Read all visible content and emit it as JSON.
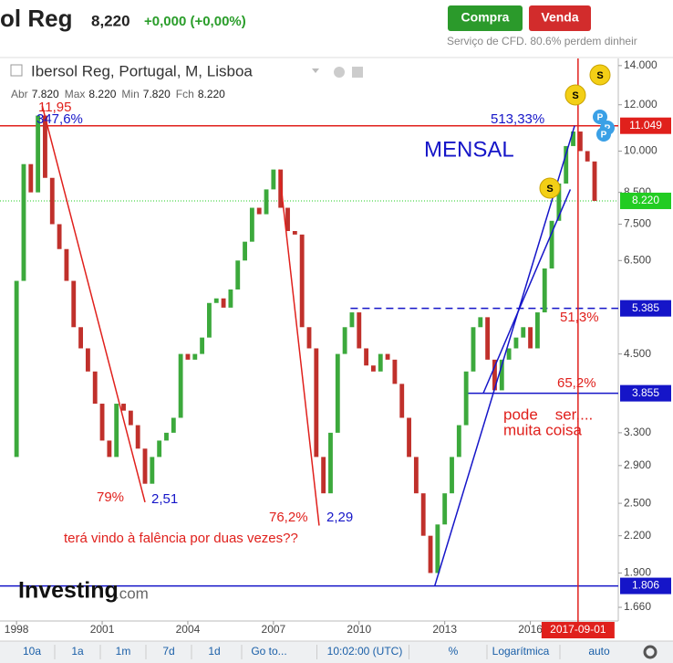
{
  "header": {
    "name": "ol Reg",
    "price": "8,220",
    "change": "+0,000 (+0,00%)",
    "buy": "Compra",
    "sell": "Venda",
    "disclaimer": "Serviço de CFD. 80.6% perdem dinheir"
  },
  "legend": {
    "title": "Ibersol Reg, Portugal, M, Lisboa",
    "ohlc": [
      {
        "label": "Abr",
        "value": "7.820"
      },
      {
        "label": "Max",
        "value": "8.220"
      },
      {
        "label": "Min",
        "value": "7.820"
      },
      {
        "label": "Fch",
        "value": "8.220"
      }
    ]
  },
  "logo": {
    "brand": "Investing",
    "suffix": ".com"
  },
  "toolbar": {
    "items": [
      "10a",
      "1a",
      "1m",
      "7d",
      "1d",
      "Go to...",
      "10:02:00 (UTC)",
      "%",
      "Logarítmica",
      "auto"
    ]
  },
  "chart_data": {
    "type": "candlestick",
    "log_scale": true,
    "xlim": [
      1997.58,
      2019.08
    ],
    "ylim": [
      1.573,
      14.4
    ],
    "xticks": [
      1998,
      2001,
      2004,
      2007,
      2010,
      2013,
      2016
    ],
    "yticks": [
      {
        "value": 1.66,
        "label": "1.660"
      },
      {
        "value": 1.9,
        "label": "1.900"
      },
      {
        "value": 2.2,
        "label": "2.200"
      },
      {
        "value": 2.5,
        "label": "2.500"
      },
      {
        "value": 2.9,
        "label": "2.900"
      },
      {
        "value": 3.3,
        "label": "3.300"
      },
      {
        "value": 4.5,
        "label": "4.500"
      },
      {
        "value": 6.5,
        "label": "6.500"
      },
      {
        "value": 7.5,
        "label": "7.500"
      },
      {
        "value": 8.5,
        "label": "8.500"
      },
      {
        "value": 10,
        "label": "10.000"
      },
      {
        "value": 12,
        "label": "12.000"
      },
      {
        "value": 14,
        "label": "14.000"
      }
    ],
    "up_color": "#3ca93c",
    "down_color": "#c0302b",
    "x": [
      1998.0,
      1998.25,
      1998.5,
      1998.75,
      1999.0,
      1999.25,
      1999.5,
      1999.75,
      2000.0,
      2000.25,
      2000.5,
      2000.75,
      2001.0,
      2001.25,
      2001.5,
      2001.75,
      2002.0,
      2002.25,
      2002.5,
      2002.75,
      2003.0,
      2003.25,
      2003.5,
      2003.75,
      2004.0,
      2004.25,
      2004.5,
      2004.75,
      2005.0,
      2005.25,
      2005.5,
      2005.75,
      2006.0,
      2006.25,
      2006.5,
      2006.75,
      2007.0,
      2007.25,
      2007.5,
      2007.75,
      2008.0,
      2008.25,
      2008.5,
      2008.75,
      2009.0,
      2009.25,
      2009.5,
      2009.75,
      2010.0,
      2010.25,
      2010.5,
      2010.75,
      2011.0,
      2011.25,
      2011.5,
      2011.75,
      2012.0,
      2012.25,
      2012.5,
      2012.75,
      2013.0,
      2013.25,
      2013.5,
      2013.75,
      2014.0,
      2014.25,
      2014.5,
      2014.75,
      2015.0,
      2015.25,
      2015.5,
      2015.75,
      2016.0,
      2016.25,
      2016.5,
      2016.75,
      2017.0,
      2017.25,
      2017.5,
      2017.75,
      2018.0,
      2018.25
    ],
    "open": [
      3.0,
      6.0,
      9.5,
      8.5,
      11.5,
      9.0,
      7.5,
      6.8,
      6.0,
      5.0,
      4.6,
      4.2,
      3.7,
      3.2,
      3.0,
      3.7,
      3.6,
      3.4,
      3.1,
      2.7,
      3.0,
      3.2,
      3.3,
      3.5,
      4.5,
      4.4,
      4.5,
      4.8,
      5.5,
      5.6,
      5.4,
      5.8,
      6.5,
      7.0,
      8.0,
      7.8,
      8.6,
      9.3,
      8.0,
      7.3,
      7.2,
      5.0,
      4.6,
      3.0,
      2.6,
      3.3,
      4.5,
      5.0,
      5.3,
      4.6,
      4.3,
      4.2,
      4.5,
      4.4,
      4.0,
      3.5,
      3.0,
      2.6,
      2.2,
      1.9,
      2.3,
      2.6,
      3.0,
      3.4,
      4.2,
      5.0,
      5.2,
      4.4,
      3.9,
      4.4,
      4.6,
      4.8,
      5.0,
      4.6,
      5.3,
      6.3,
      7.6,
      8.8,
      10.2,
      10.8,
      10.0,
      9.6
    ],
    "close": [
      6.0,
      9.5,
      8.5,
      11.5,
      9.0,
      7.5,
      6.8,
      6.0,
      5.0,
      4.6,
      4.2,
      3.7,
      3.2,
      3.0,
      3.7,
      3.6,
      3.4,
      3.1,
      2.7,
      3.0,
      3.2,
      3.3,
      3.5,
      4.5,
      4.4,
      4.5,
      4.8,
      5.5,
      5.6,
      5.4,
      5.8,
      6.5,
      7.0,
      8.0,
      7.8,
      8.6,
      9.3,
      8.0,
      7.3,
      7.2,
      5.0,
      4.6,
      3.0,
      2.6,
      3.3,
      4.5,
      5.0,
      5.3,
      4.6,
      4.3,
      4.2,
      4.5,
      4.4,
      4.0,
      3.5,
      3.0,
      2.6,
      2.2,
      1.9,
      2.3,
      2.6,
      3.0,
      3.4,
      4.2,
      5.0,
      5.2,
      4.4,
      3.9,
      4.4,
      4.6,
      4.8,
      5.0,
      4.6,
      5.3,
      6.3,
      7.6,
      8.8,
      10.2,
      10.8,
      10.0,
      9.6,
      8.22
    ],
    "levels": [
      {
        "value": 11.049,
        "label": "11.049",
        "color": "#e0201c",
        "style": "solid"
      },
      {
        "value": 8.22,
        "label": "8.220",
        "color": "#22cc22",
        "style": "dotted"
      },
      {
        "value": 5.385,
        "label": "5.385",
        "color": "#1515c8",
        "style": "dashed",
        "from": 2009.7
      },
      {
        "value": 3.855,
        "label": "3.855",
        "color": "#1515c8",
        "style": "solid",
        "from": 2013.7
      },
      {
        "value": 1.806,
        "label": "1.806",
        "color": "#1515c8",
        "style": "solid"
      }
    ],
    "trend_lines": [
      {
        "color": "#e0201c",
        "x": [
          1998.9,
          2002.5
        ],
        "y": [
          11.95,
          2.51
        ]
      },
      {
        "color": "#e0201c",
        "x": [
          2007.2,
          2008.6
        ],
        "y": [
          9.3,
          2.29
        ]
      },
      {
        "color": "#1515c8",
        "x": [
          2012.65,
          2017.55
        ],
        "y": [
          1.806,
          11.049
        ]
      },
      {
        "color": "#1515c8",
        "x": [
          2014.35,
          2017.4
        ],
        "y": [
          3.855,
          8.6
        ]
      }
    ],
    "cursor": {
      "x": 2017.67,
      "label": "2017-09-01",
      "color": "#e0201c"
    },
    "annotations": [
      {
        "text": "11,95",
        "color": "#e0201c"
      },
      {
        "text": "347,6%",
        "color": "#1515c8"
      },
      {
        "text": "513,33%",
        "color": "#1515c8"
      },
      {
        "text": "MENSAL",
        "color": "#1515c8"
      },
      {
        "text": "51,3%",
        "color": "#e0201c"
      },
      {
        "text": "65,2%",
        "color": "#e0201c"
      },
      {
        "text": "pode    ser,...",
        "color": "#e0201c"
      },
      {
        "text": "muita coisa",
        "color": "#e0201c"
      },
      {
        "text": "79%",
        "color": "#e0201c"
      },
      {
        "text": "2,51",
        "color": "#1515c8"
      },
      {
        "text": "76,2%",
        "color": "#e0201c"
      },
      {
        "text": "2,29",
        "color": "#1515c8"
      },
      {
        "text": "terá vindo à falência por duas vezes??",
        "color": "#e0201c"
      }
    ]
  }
}
